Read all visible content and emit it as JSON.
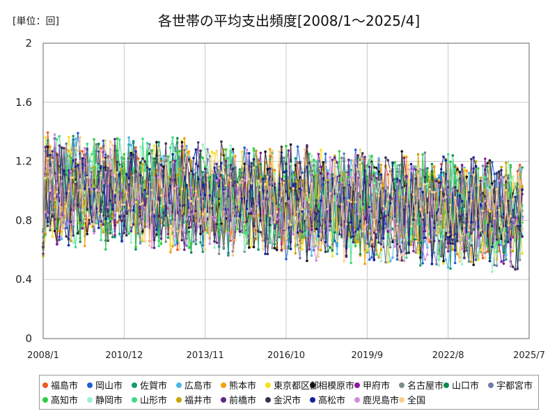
{
  "unit_label": "[単位：回]",
  "chart_data": {
    "type": "line",
    "title": "各世帯の平均支出頻度[2008/1～2025/4]",
    "xlabel": "",
    "ylabel": "",
    "ylim": [
      0,
      2
    ],
    "yticks": [
      "0",
      "0.4",
      "0.8",
      "1.2",
      "1.6",
      "2"
    ],
    "xticks": [
      "2008/1",
      "2010/12",
      "2013/11",
      "2016/10",
      "2019/9",
      "2022/8",
      "2025/7"
    ],
    "grid": true,
    "legend_position": "bottom",
    "x_start": "2008/1",
    "x_end": "2025/7",
    "series": [
      {
        "name": "福島市",
        "color": "#ee5a24"
      },
      {
        "name": "岡山市",
        "color": "#1f5fd0"
      },
      {
        "name": "佐賀市",
        "color": "#169b6b"
      },
      {
        "name": "広島市",
        "color": "#4fb6e8"
      },
      {
        "name": "熊本市",
        "color": "#f0a30a"
      },
      {
        "name": "東京都区部",
        "color": "#f5e21b"
      },
      {
        "name": "相模原市",
        "color": "#111111"
      },
      {
        "name": "甲府市",
        "color": "#8a1a9b"
      },
      {
        "name": "名古屋市",
        "color": "#7f8c8d"
      },
      {
        "name": "山口市",
        "color": "#0e8a4f"
      },
      {
        "name": "宇都宮市",
        "color": "#6c7fa8"
      },
      {
        "name": "高知市",
        "color": "#2ecc40"
      },
      {
        "name": "静岡市",
        "color": "#9ef0c8"
      },
      {
        "name": "山形市",
        "color": "#3ddc84"
      },
      {
        "name": "福井市",
        "color": "#c9a400"
      },
      {
        "name": "前橋市",
        "color": "#5b2a86"
      },
      {
        "name": "金沢市",
        "color": "#3b2f4f"
      },
      {
        "name": "高松市",
        "color": "#12239e"
      },
      {
        "name": "鹿児島市",
        "color": "#cf8fd8"
      },
      {
        "name": "全国",
        "color": "#f6d08a"
      }
    ]
  }
}
